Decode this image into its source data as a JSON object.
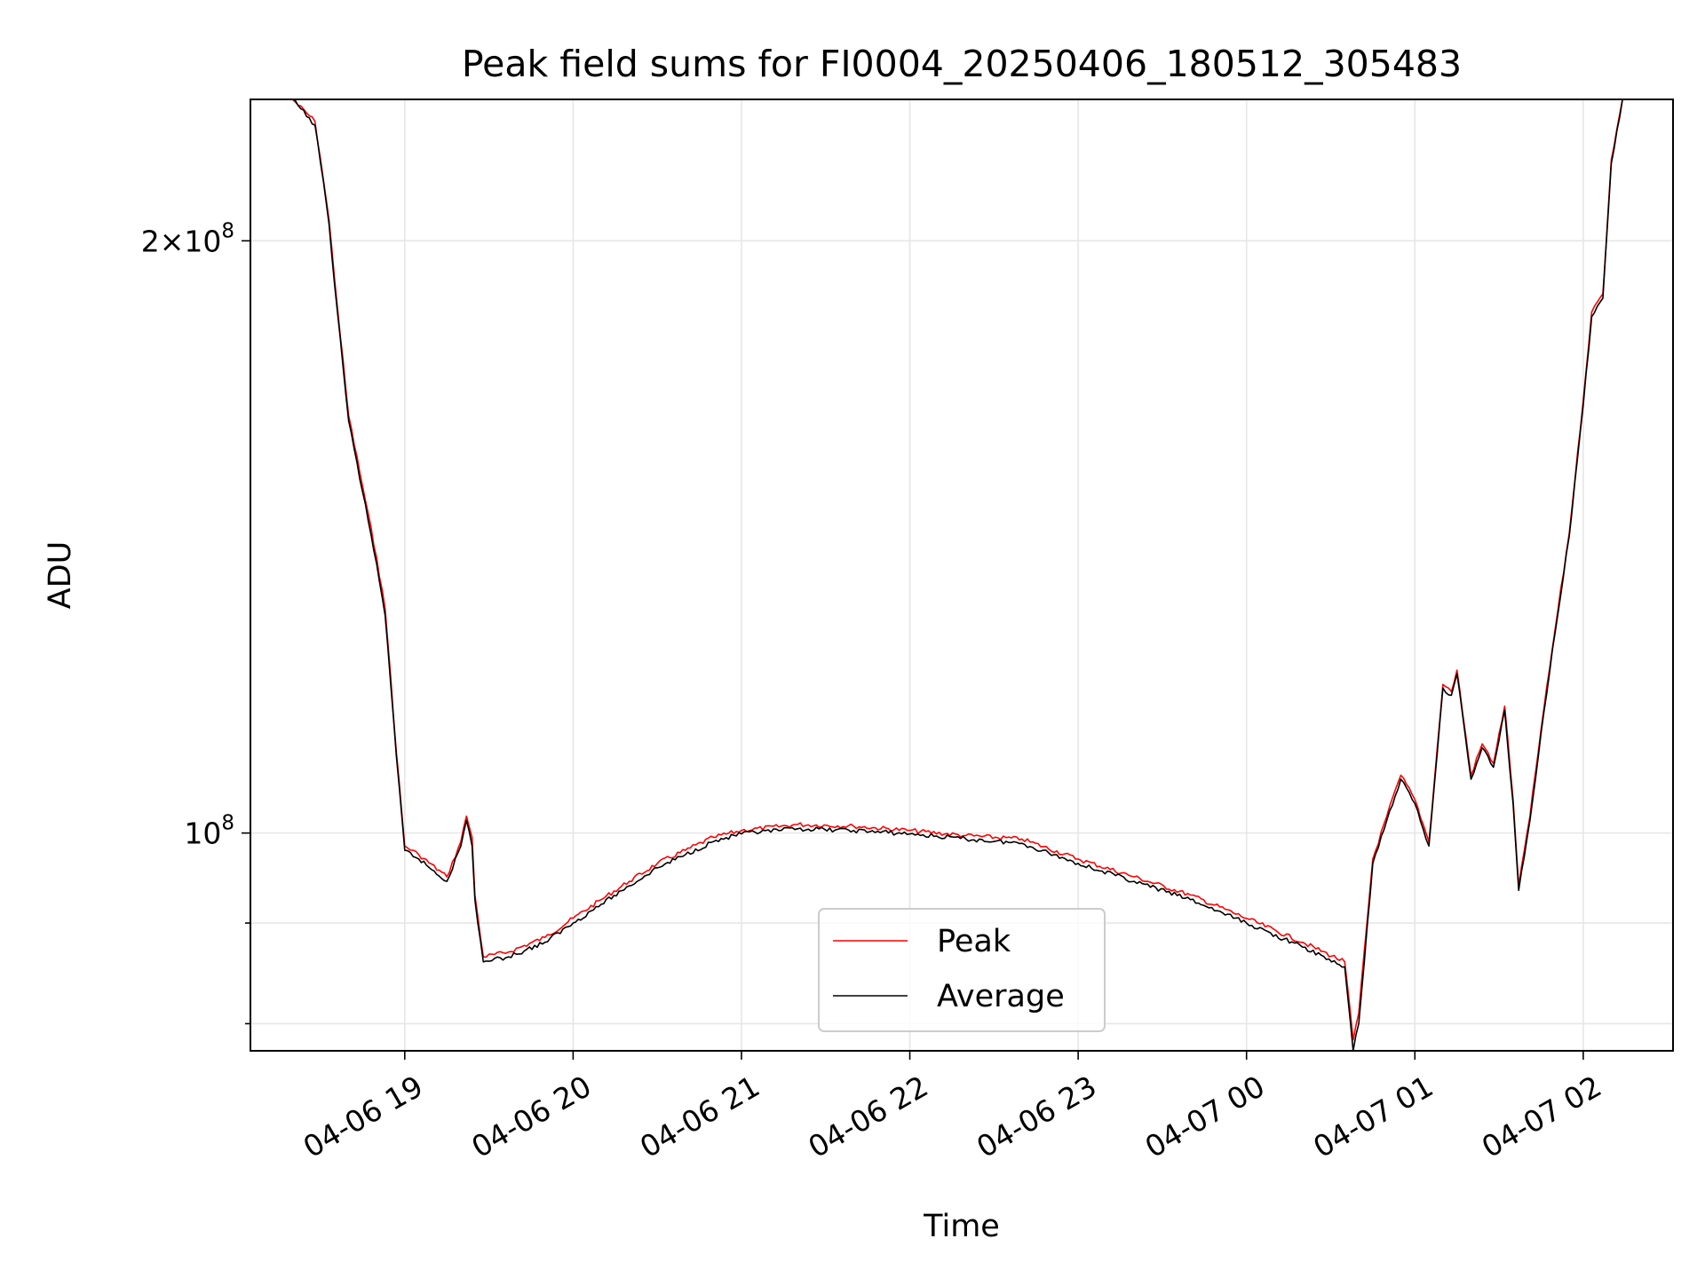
{
  "chart_data": {
    "type": "line",
    "title": "Peak field sums for FI0004_20250406_180512_305483",
    "xlabel": "Time",
    "ylabel": "ADU",
    "x_tick_labels": [
      "04-06 19",
      "04-06 20",
      "04-06 21",
      "04-06 22",
      "04-06 23",
      "04-07 00",
      "04-07 01",
      "04-07 02"
    ],
    "y_tick_labels": [
      {
        "value": 200000000,
        "mantissa": "2",
        "times": "×",
        "base": "10",
        "exp": "8"
      },
      {
        "value": 100000000,
        "mantissa": "",
        "times": "",
        "base": "10",
        "exp": "8"
      }
    ],
    "y_scale": "log",
    "ylim": [
      77500000,
      236000000
    ],
    "xlim": [
      "2025-04-06 18:05",
      "2025-04-07 02:32"
    ],
    "grid": true,
    "legend_position": "lower center",
    "colors": {
      "peak": "#ff0000",
      "average": "#000000"
    },
    "series": [
      {
        "name": "Peak",
        "color": "#ff0000",
        "points": [
          [
            "2025-04-06 18:05",
            236000000
          ],
          [
            "2025-04-06 18:20",
            236000000
          ],
          [
            "2025-04-06 18:28",
            230000000
          ],
          [
            "2025-04-06 18:30",
            220000000
          ],
          [
            "2025-04-06 18:33",
            205000000
          ],
          [
            "2025-04-06 18:36",
            185000000
          ],
          [
            "2025-04-06 18:40",
            163000000
          ],
          [
            "2025-04-06 18:45",
            150000000
          ],
          [
            "2025-04-06 18:50",
            138000000
          ],
          [
            "2025-04-06 18:53",
            130000000
          ],
          [
            "2025-04-06 18:55",
            120000000
          ],
          [
            "2025-04-06 18:57",
            110000000
          ],
          [
            "2025-04-06 19:00",
            98500000
          ],
          [
            "2025-04-06 19:05",
            97500000
          ],
          [
            "2025-04-06 19:15",
            95000000
          ],
          [
            "2025-04-06 19:20",
            99000000
          ],
          [
            "2025-04-06 19:22",
            102000000
          ],
          [
            "2025-04-06 19:24",
            99500000
          ],
          [
            "2025-04-06 19:25",
            93000000
          ],
          [
            "2025-04-06 19:28",
            86500000
          ],
          [
            "2025-04-06 19:37",
            87000000
          ],
          [
            "2025-04-06 19:50",
            88500000
          ],
          [
            "2025-04-06 20:00",
            90500000
          ],
          [
            "2025-04-06 20:10",
            92500000
          ],
          [
            "2025-04-06 20:20",
            94500000
          ],
          [
            "2025-04-06 20:30",
            96500000
          ],
          [
            "2025-04-06 20:40",
            98000000
          ],
          [
            "2025-04-06 20:50",
            99500000
          ],
          [
            "2025-04-06 21:00",
            100300000
          ],
          [
            "2025-04-06 21:20",
            101000000
          ],
          [
            "2025-04-06 21:40",
            100800000
          ],
          [
            "2025-04-06 22:00",
            100300000
          ],
          [
            "2025-04-06 22:20",
            99700000
          ],
          [
            "2025-04-06 22:40",
            99300000
          ],
          [
            "2025-04-06 23:00",
            97000000
          ],
          [
            "2025-04-06 23:20",
            95000000
          ],
          [
            "2025-04-06 23:40",
            93000000
          ],
          [
            "2025-04-07 00:00",
            90500000
          ],
          [
            "2025-04-07 00:20",
            88000000
          ],
          [
            "2025-04-07 00:35",
            86000000
          ],
          [
            "2025-04-07 00:38",
            78500000
          ],
          [
            "2025-04-07 00:40",
            81000000
          ],
          [
            "2025-04-07 00:45",
            97000000
          ],
          [
            "2025-04-07 00:50",
            102000000
          ],
          [
            "2025-04-07 00:55",
            107000000
          ],
          [
            "2025-04-07 01:00",
            104000000
          ],
          [
            "2025-04-07 01:05",
            99000000
          ],
          [
            "2025-04-07 01:10",
            119000000
          ],
          [
            "2025-04-07 01:13",
            118000000
          ],
          [
            "2025-04-07 01:15",
            121000000
          ],
          [
            "2025-04-07 01:20",
            107000000
          ],
          [
            "2025-04-07 01:24",
            111000000
          ],
          [
            "2025-04-07 01:28",
            108500000
          ],
          [
            "2025-04-07 01:32",
            116000000
          ],
          [
            "2025-04-07 01:35",
            104000000
          ],
          [
            "2025-04-07 01:37",
            94000000
          ],
          [
            "2025-04-07 01:41",
            102000000
          ],
          [
            "2025-04-07 01:45",
            113000000
          ],
          [
            "2025-04-07 01:50",
            127000000
          ],
          [
            "2025-04-07 01:55",
            142000000
          ],
          [
            "2025-04-07 02:00",
            166000000
          ],
          [
            "2025-04-07 02:03",
            184000000
          ],
          [
            "2025-04-07 02:07",
            188000000
          ],
          [
            "2025-04-07 02:10",
            220000000
          ],
          [
            "2025-04-07 02:14",
            236000000
          ],
          [
            "2025-04-07 02:32",
            236000000
          ]
        ]
      },
      {
        "name": "Average",
        "color": "#000000",
        "points": [
          [
            "2025-04-06 18:05",
            236000000
          ],
          [
            "2025-04-06 18:20",
            236000000
          ],
          [
            "2025-04-06 18:28",
            229000000
          ],
          [
            "2025-04-06 18:30",
            219000000
          ],
          [
            "2025-04-06 18:33",
            204000000
          ],
          [
            "2025-04-06 18:36",
            184000000
          ],
          [
            "2025-04-06 18:40",
            162000000
          ],
          [
            "2025-04-06 18:45",
            149000000
          ],
          [
            "2025-04-06 18:50",
            137000000
          ],
          [
            "2025-04-06 18:53",
            129000000
          ],
          [
            "2025-04-06 18:55",
            119000000
          ],
          [
            "2025-04-06 18:57",
            109500000
          ],
          [
            "2025-04-06 19:00",
            98000000
          ],
          [
            "2025-04-06 19:05",
            97000000
          ],
          [
            "2025-04-06 19:15",
            94500000
          ],
          [
            "2025-04-06 19:20",
            98500000
          ],
          [
            "2025-04-06 19:22",
            101500000
          ],
          [
            "2025-04-06 19:24",
            98500000
          ],
          [
            "2025-04-06 19:25",
            92500000
          ],
          [
            "2025-04-06 19:28",
            86000000
          ],
          [
            "2025-04-06 19:37",
            86500000
          ],
          [
            "2025-04-06 19:50",
            88000000
          ],
          [
            "2025-04-06 20:00",
            90000000
          ],
          [
            "2025-04-06 20:10",
            92000000
          ],
          [
            "2025-04-06 20:20",
            94000000
          ],
          [
            "2025-04-06 20:30",
            96000000
          ],
          [
            "2025-04-06 20:40",
            97500000
          ],
          [
            "2025-04-06 20:50",
            99000000
          ],
          [
            "2025-04-06 21:00",
            99900000
          ],
          [
            "2025-04-06 21:20",
            100500000
          ],
          [
            "2025-04-06 21:40",
            100300000
          ],
          [
            "2025-04-06 22:00",
            99900000
          ],
          [
            "2025-04-06 22:20",
            99300000
          ],
          [
            "2025-04-06 22:40",
            98800000
          ],
          [
            "2025-04-06 23:00",
            96500000
          ],
          [
            "2025-04-06 23:20",
            94500000
          ],
          [
            "2025-04-06 23:40",
            92500000
          ],
          [
            "2025-04-07 00:00",
            90000000
          ],
          [
            "2025-04-07 00:20",
            87500000
          ],
          [
            "2025-04-07 00:35",
            85500000
          ],
          [
            "2025-04-07 00:38",
            77500000
          ],
          [
            "2025-04-07 00:40",
            80000000
          ],
          [
            "2025-04-07 00:45",
            96500000
          ],
          [
            "2025-04-07 00:50",
            101500000
          ],
          [
            "2025-04-07 00:55",
            106500000
          ],
          [
            "2025-04-07 01:00",
            103500000
          ],
          [
            "2025-04-07 01:05",
            98500000
          ],
          [
            "2025-04-07 01:10",
            118500000
          ],
          [
            "2025-04-07 01:13",
            117500000
          ],
          [
            "2025-04-07 01:15",
            120500000
          ],
          [
            "2025-04-07 01:20",
            106500000
          ],
          [
            "2025-04-07 01:24",
            110500000
          ],
          [
            "2025-04-07 01:28",
            108000000
          ],
          [
            "2025-04-07 01:32",
            115500000
          ],
          [
            "2025-04-07 01:35",
            103500000
          ],
          [
            "2025-04-07 01:37",
            93500000
          ],
          [
            "2025-04-07 01:41",
            101500000
          ],
          [
            "2025-04-07 01:45",
            112500000
          ],
          [
            "2025-04-07 01:50",
            126500000
          ],
          [
            "2025-04-07 01:55",
            141500000
          ],
          [
            "2025-04-07 02:00",
            165000000
          ],
          [
            "2025-04-07 02:03",
            183000000
          ],
          [
            "2025-04-07 02:07",
            187000000
          ],
          [
            "2025-04-07 02:10",
            219000000
          ],
          [
            "2025-04-07 02:14",
            236000000
          ],
          [
            "2025-04-07 02:32",
            236000000
          ]
        ]
      }
    ]
  }
}
